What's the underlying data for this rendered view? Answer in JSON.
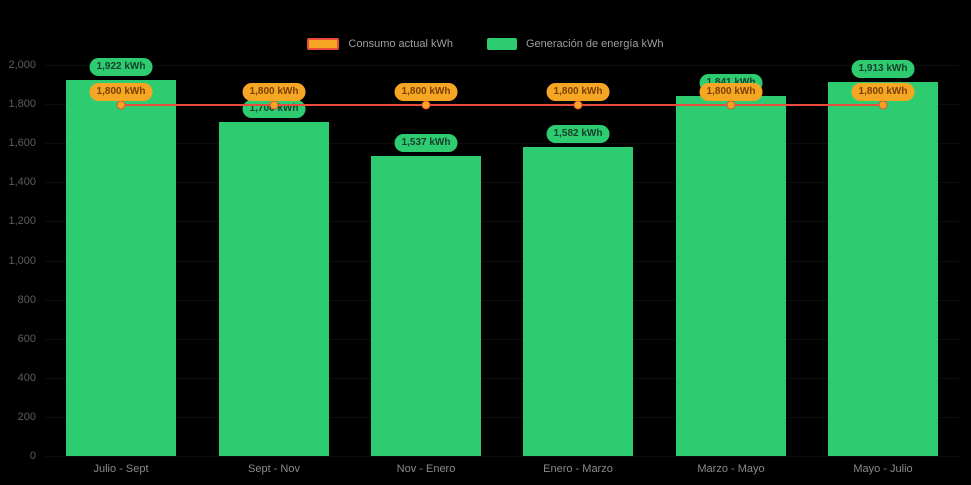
{
  "chart_data": {
    "type": "bar",
    "categories": [
      "Julio - Sept",
      "Sept - Nov",
      "Nov - Enero",
      "Enero - Marzo",
      "Marzo - Mayo",
      "Mayo - Julio"
    ],
    "series": [
      {
        "name": "Consumo actual kWh",
        "kind": "line",
        "values": [
          1800,
          1800,
          1800,
          1800,
          1800,
          1800
        ],
        "line_color": "#e74c3c",
        "marker_color": "#f5a623",
        "label_bg": "#f5a623"
      },
      {
        "name": "Generación de energía kWh",
        "kind": "bar",
        "values": [
          1922,
          1706,
          1537,
          1582,
          1841,
          1913
        ],
        "bar_color": "#2ecc71",
        "label_bg": "#2ecc71"
      }
    ],
    "value_suffix": " kWh",
    "ylim": [
      0,
      2000
    ],
    "ytick_step": 200,
    "ytick_labels": [
      "0",
      "200",
      "400",
      "600",
      "800",
      "1,000",
      "1,200",
      "1,400",
      "1,600",
      "1,800",
      "2,000"
    ],
    "data_labels": {
      "line": [
        "1,800 kWh",
        "1,800 kWh",
        "1,800 kWh",
        "1,800 kWh",
        "1,800 kWh",
        "1,800 kWh"
      ],
      "bar": [
        "1,922 kWh",
        "1,706 kWh",
        "1,537 kWh",
        "1,582 kWh",
        "1,841 kWh",
        "1,913 kWh"
      ]
    },
    "legend_position": "top",
    "background": "#000000",
    "grid": "off",
    "xlabel": "",
    "ylabel": ""
  }
}
